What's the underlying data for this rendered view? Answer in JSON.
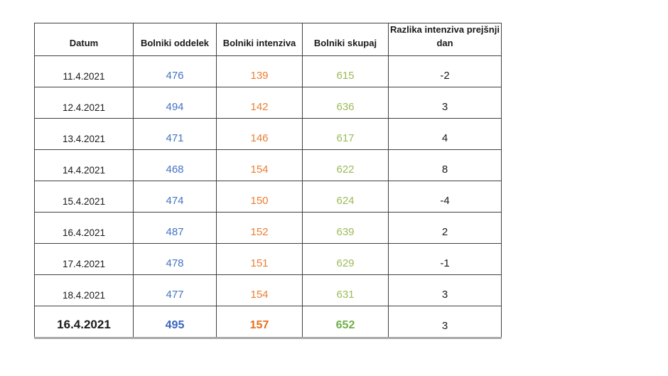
{
  "page": {
    "background": "#ffffff"
  },
  "colors": {
    "oddelek": "#4472C4",
    "intenziva": "#ED7D31",
    "skupaj": "#9BBB59",
    "emphasis_oddelek": "#3764BE",
    "emphasis_intenziva": "#E4701E",
    "emphasis_skupaj": "#70AD47",
    "text": "#1a1a1a",
    "grid": "#404040",
    "bottom_edge": "#a8a8a8"
  },
  "table": {
    "columns": [
      {
        "id": "datum",
        "label": "Datum"
      },
      {
        "id": "oddelek",
        "label": "Bolniki oddelek"
      },
      {
        "id": "intenziva",
        "label": "Bolniki intenziva"
      },
      {
        "id": "skupaj",
        "label": "Bolniki skupaj"
      },
      {
        "id": "razlika",
        "label": "Razlika intenziva prejšnji dan"
      }
    ],
    "rows": [
      {
        "datum": "11.4.2021",
        "oddelek": "476",
        "intenziva": "139",
        "skupaj": "615",
        "razlika": "-2",
        "emphasis": false
      },
      {
        "datum": "12.4.2021",
        "oddelek": "494",
        "intenziva": "142",
        "skupaj": "636",
        "razlika": "3",
        "emphasis": false
      },
      {
        "datum": "13.4.2021",
        "oddelek": "471",
        "intenziva": "146",
        "skupaj": "617",
        "razlika": "4",
        "emphasis": false
      },
      {
        "datum": "14.4.2021",
        "oddelek": "468",
        "intenziva": "154",
        "skupaj": "622",
        "razlika": "8",
        "emphasis": false
      },
      {
        "datum": "15.4.2021",
        "oddelek": "474",
        "intenziva": "150",
        "skupaj": "624",
        "razlika": "-4",
        "emphasis": false
      },
      {
        "datum": "16.4.2021",
        "oddelek": "487",
        "intenziva": "152",
        "skupaj": "639",
        "razlika": "2",
        "emphasis": false
      },
      {
        "datum": "17.4.2021",
        "oddelek": "478",
        "intenziva": "151",
        "skupaj": "629",
        "razlika": "-1",
        "emphasis": false
      },
      {
        "datum": "18.4.2021",
        "oddelek": "477",
        "intenziva": "154",
        "skupaj": "631",
        "razlika": "3",
        "emphasis": false
      },
      {
        "datum": "16.4.2021",
        "oddelek": "495",
        "intenziva": "157",
        "skupaj": "652",
        "razlika": "3",
        "emphasis": true
      }
    ]
  },
  "chart_data": {
    "type": "table",
    "columns": [
      "Datum",
      "Bolniki oddelek",
      "Bolniki intenziva",
      "Bolniki skupaj",
      "Razlika intenziva prejšnji dan"
    ],
    "rows": [
      [
        "11.4.2021",
        476,
        139,
        615,
        -2
      ],
      [
        "12.4.2021",
        494,
        142,
        636,
        3
      ],
      [
        "13.4.2021",
        471,
        146,
        617,
        4
      ],
      [
        "14.4.2021",
        468,
        154,
        622,
        8
      ],
      [
        "15.4.2021",
        474,
        150,
        624,
        -4
      ],
      [
        "16.4.2021",
        487,
        152,
        639,
        2
      ],
      [
        "17.4.2021",
        478,
        151,
        629,
        -1
      ],
      [
        "18.4.2021",
        477,
        154,
        631,
        3
      ],
      [
        "16.4.2021",
        495,
        157,
        652,
        3
      ]
    ],
    "series": [
      {
        "name": "Bolniki oddelek",
        "values": [
          476,
          494,
          471,
          468,
          474,
          487,
          478,
          477,
          495
        ]
      },
      {
        "name": "Bolniki intenziva",
        "values": [
          139,
          142,
          146,
          154,
          150,
          152,
          151,
          154,
          157
        ]
      },
      {
        "name": "Bolniki skupaj",
        "values": [
          615,
          636,
          617,
          622,
          624,
          639,
          629,
          631,
          652
        ]
      },
      {
        "name": "Razlika intenziva prejšnji dan",
        "values": [
          -2,
          3,
          4,
          8,
          -4,
          2,
          -1,
          3,
          3
        ]
      }
    ],
    "categories": [
      "11.4.2021",
      "12.4.2021",
      "13.4.2021",
      "14.4.2021",
      "15.4.2021",
      "16.4.2021",
      "17.4.2021",
      "18.4.2021",
      "16.4.2021"
    ]
  }
}
